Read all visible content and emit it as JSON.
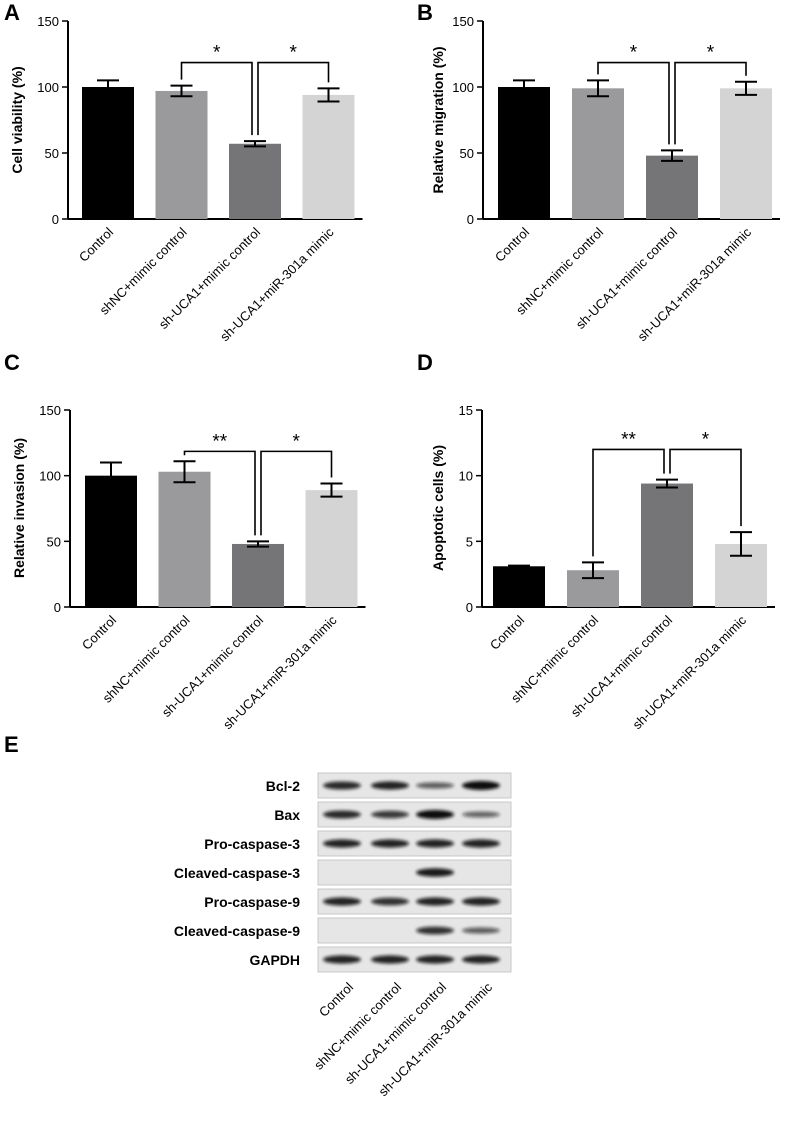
{
  "chart_data": [
    {
      "panel": "A",
      "type": "bar",
      "categories": [
        "Control",
        "shNC+mimic control",
        "sh-UCA1+mimic control",
        "sh-UCA1+miR-301a mimic"
      ],
      "values": [
        100,
        97,
        57,
        94
      ],
      "errors": [
        5,
        4,
        2,
        5
      ],
      "ylabel": "Cell viability (%)",
      "ylim": [
        0,
        150
      ],
      "yticks": [
        0,
        50,
        100,
        150
      ],
      "colors": [
        "#000000",
        "#9a9a9c",
        "#757577",
        "#d4d4d4"
      ],
      "significance": [
        {
          "from": 1,
          "to": 2,
          "label": "*"
        },
        {
          "from": 2,
          "to": 3,
          "label": "*"
        }
      ]
    },
    {
      "panel": "B",
      "type": "bar",
      "categories": [
        "Control",
        "shNC+mimic control",
        "sh-UCA1+mimic control",
        "sh-UCA1+miR-301a mimic"
      ],
      "values": [
        100,
        99,
        48,
        99
      ],
      "errors": [
        5,
        6,
        4,
        5
      ],
      "ylabel": "Relative migration (%)",
      "ylim": [
        0,
        150
      ],
      "yticks": [
        0,
        50,
        100,
        150
      ],
      "colors": [
        "#000000",
        "#9a9a9c",
        "#757577",
        "#d4d4d4"
      ],
      "significance": [
        {
          "from": 1,
          "to": 2,
          "label": "*"
        },
        {
          "from": 2,
          "to": 3,
          "label": "*"
        }
      ]
    },
    {
      "panel": "C",
      "type": "bar",
      "categories": [
        "Control",
        "shNC+mimic control",
        "sh-UCA1+mimic control",
        "sh-UCA1+miR-301a mimic"
      ],
      "values": [
        100,
        103,
        48,
        89
      ],
      "errors": [
        10,
        8,
        2,
        5
      ],
      "ylabel": "Relative invasion (%)",
      "ylim": [
        0,
        150
      ],
      "yticks": [
        0,
        50,
        100,
        150
      ],
      "colors": [
        "#000000",
        "#9a9a9c",
        "#757577",
        "#d4d4d4"
      ],
      "significance": [
        {
          "from": 1,
          "to": 2,
          "label": "**"
        },
        {
          "from": 2,
          "to": 3,
          "label": "*"
        }
      ]
    },
    {
      "panel": "D",
      "type": "bar",
      "categories": [
        "Control",
        "shNC+mimic control",
        "sh-UCA1+mimic control",
        "sh-UCA1+miR-301a mimic"
      ],
      "values": [
        3.1,
        2.8,
        9.4,
        4.8
      ],
      "errors": [
        0.05,
        0.6,
        0.3,
        0.9
      ],
      "ylabel": "Apoptotic cells (%)",
      "ylim": [
        0,
        15
      ],
      "yticks": [
        0,
        5,
        10,
        15
      ],
      "colors": [
        "#000000",
        "#9a9a9c",
        "#757577",
        "#d4d4d4"
      ],
      "significance": [
        {
          "from": 1,
          "to": 2,
          "label": "**"
        },
        {
          "from": 2,
          "to": 3,
          "label": "*"
        }
      ]
    }
  ],
  "western_blot": {
    "panel": "E",
    "rows": [
      "Bcl-2",
      "Bax",
      "Pro-caspase-3",
      "Cleaved-caspase-3",
      "Pro-caspase-9",
      "Cleaved-caspase-9",
      "GAPDH"
    ],
    "lanes": [
      "Control",
      "shNC+mimic control",
      "sh-UCA1+mimic  control",
      "sh-UCA1+miR-301a mimic"
    ],
    "intensity": [
      [
        0.8,
        0.85,
        0.45,
        1.0
      ],
      [
        0.8,
        0.7,
        1.0,
        0.4
      ],
      [
        0.85,
        0.85,
        0.85,
        0.85
      ],
      [
        0.0,
        0.0,
        0.9,
        0.0
      ],
      [
        0.85,
        0.75,
        0.85,
        0.85
      ],
      [
        0.0,
        0.0,
        0.75,
        0.45
      ],
      [
        0.85,
        0.85,
        0.85,
        0.85
      ]
    ]
  }
}
